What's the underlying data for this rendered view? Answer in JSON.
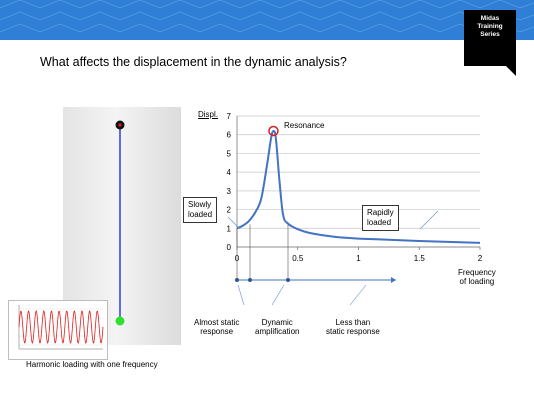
{
  "badge": {
    "lines": [
      "Midas",
      "Training",
      "Series"
    ]
  },
  "heading": "What affects the displacement in the dynamic analysis?",
  "caption": "Harmonic loading with one frequency",
  "annotations": {
    "resonance": "Resonance",
    "slowly_loaded": [
      "Slowly",
      "loaded"
    ],
    "rapidly_loaded": [
      "Rapidly",
      "loaded"
    ],
    "almost_static": [
      "Almost static",
      "response"
    ],
    "dynamic_amp": [
      "Dynamic",
      "amplification"
    ],
    "less_than_static": [
      "Less than",
      "static response"
    ]
  },
  "colors": {
    "curve": "#4472c4",
    "banner": "#2f7fd6",
    "marker": "#d42020"
  },
  "chart_data": {
    "type": "line",
    "title": "",
    "xlabel": "Frequency of loading",
    "ylabel": "Displ.",
    "xlim": [
      0,
      2
    ],
    "ylim": [
      0,
      7
    ],
    "xticks": [
      "0",
      "0.5",
      "1",
      "1.5",
      "2"
    ],
    "yticks": [
      "0",
      "1",
      "2",
      "3",
      "4",
      "5",
      "6",
      "7"
    ],
    "grid": true,
    "series": [
      {
        "name": "",
        "x": [
          0,
          0.05,
          0.1,
          0.15,
          0.2,
          0.25,
          0.28,
          0.3,
          0.32,
          0.35,
          0.38,
          0.42,
          0.5,
          0.6,
          0.8,
          1.0,
          1.2,
          1.5,
          1.8,
          2.0
        ],
        "y": [
          1.0,
          1.15,
          1.4,
          1.85,
          2.6,
          4.5,
          5.8,
          6.2,
          5.8,
          3.5,
          1.7,
          1.25,
          0.95,
          0.75,
          0.55,
          0.45,
          0.4,
          0.32,
          0.26,
          0.22
        ]
      }
    ],
    "resonance_point": {
      "x": 0.3,
      "y": 6.2
    }
  }
}
